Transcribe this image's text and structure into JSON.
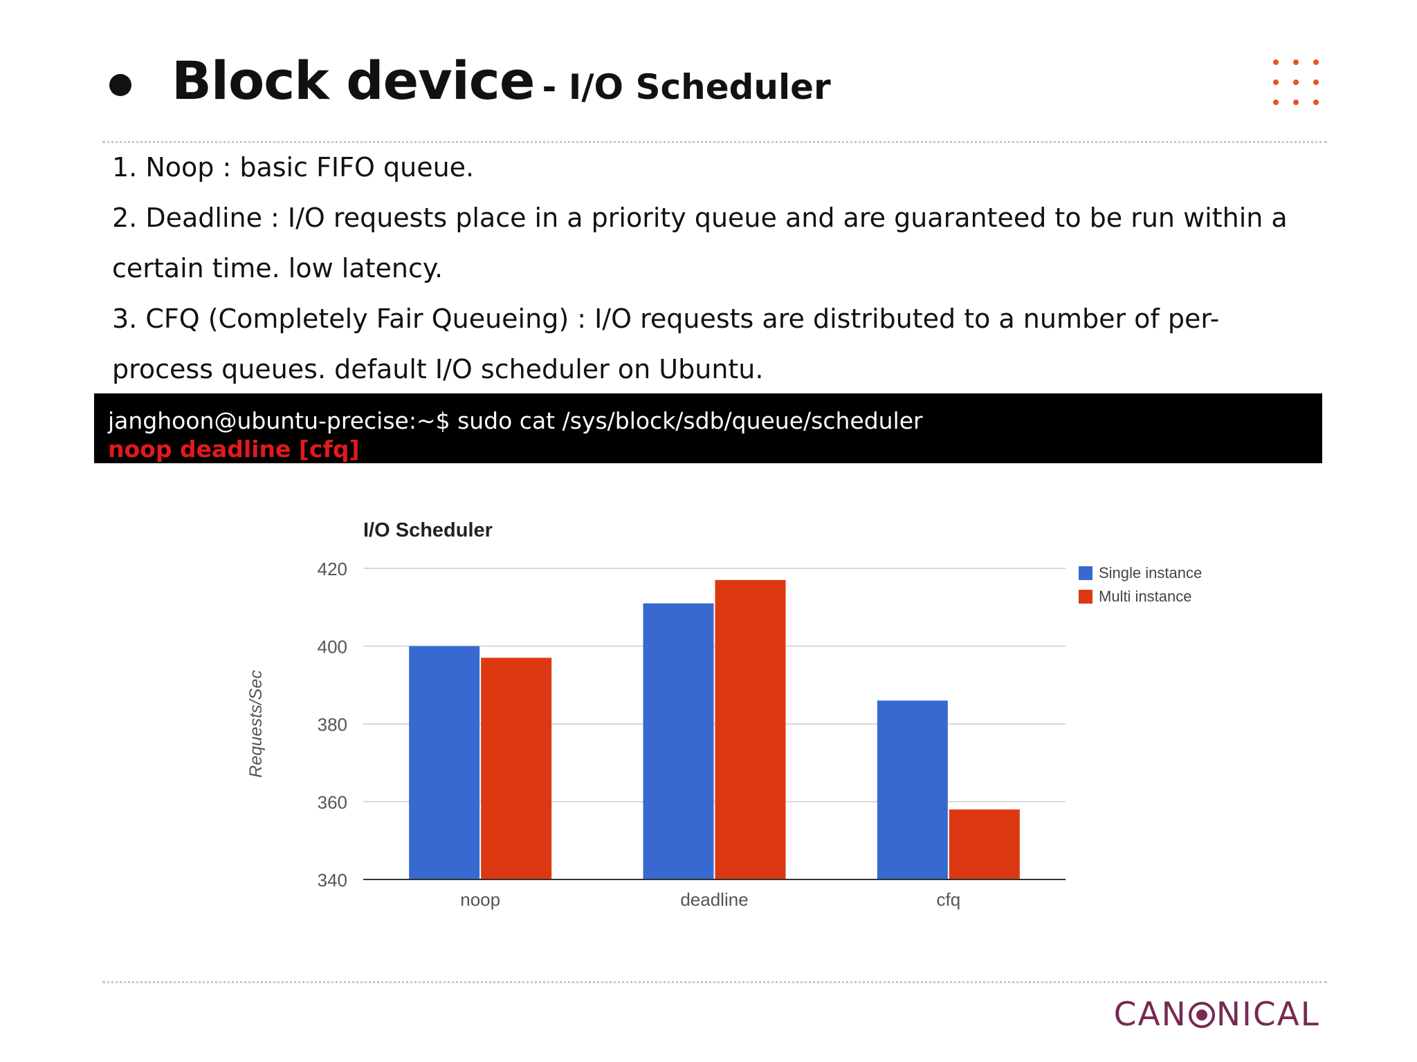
{
  "slide": {
    "title_main": "Block device",
    "title_sub": "- I/O Scheduler",
    "lines": [
      "1. Noop : basic FIFO queue.",
      "2. Deadline : I/O requests place in a priority queue and are guaranteed to be run within a",
      "certain time. low latency.",
      "3. CFQ (Completely Fair Queueing) : I/O requests are distributed to a number of per-",
      "process queues. default I/O scheduler on Ubuntu."
    ],
    "accent_color": "#e95420"
  },
  "terminal": {
    "command": "janghoon@ubuntu-precise:~$ sudo cat /sys/block/sdb/queue/scheduler",
    "output": "noop deadline [cfq]",
    "output_color": "#e11a1a"
  },
  "chart_data": {
    "type": "bar",
    "title": "I/O Scheduler",
    "xlabel": "",
    "ylabel": "Requests/Sec",
    "categories": [
      "noop",
      "deadline",
      "cfq"
    ],
    "series": [
      {
        "name": "Single instance",
        "values": [
          400,
          411,
          386
        ],
        "color": "#3769d0"
      },
      {
        "name": "Multi instance",
        "values": [
          397,
          417,
          358
        ],
        "color": "#dc3912"
      }
    ],
    "ylim": [
      340,
      420
    ],
    "yticks": [
      340,
      360,
      380,
      400,
      420
    ],
    "grid": true,
    "legend": "right"
  },
  "footer": {
    "logo_before": "CAN",
    "logo_after": "NICAL",
    "logo_color": "#772953"
  }
}
